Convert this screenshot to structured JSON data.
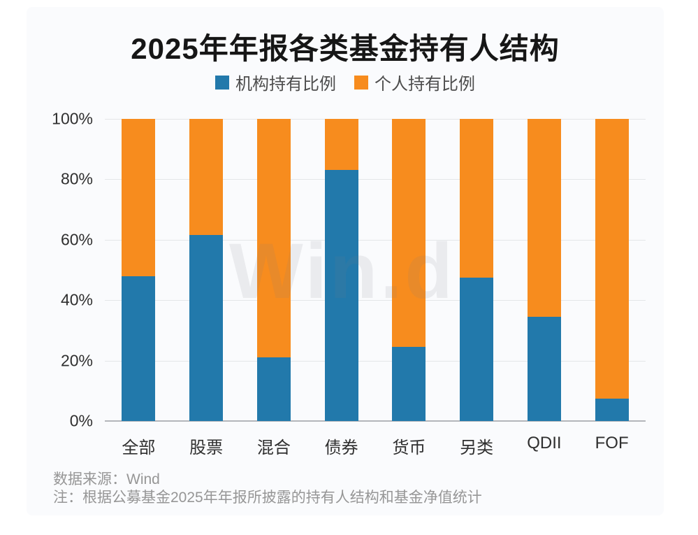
{
  "title": "2025年年报各类基金持有人结构",
  "legend": {
    "institutional": {
      "label": "机构持有比例",
      "color": "#2279ab"
    },
    "individual": {
      "label": "个人持有比例",
      "color": "#f78c1e"
    }
  },
  "watermark": "Win.d",
  "footer": {
    "source": "数据来源：Wind",
    "note": "注：根据公募基金2025年年报所披露的持有人结构和基金净值统计"
  },
  "chart_data": {
    "type": "bar",
    "stacked": true,
    "title": "2025年年报各类基金持有人结构",
    "categories": [
      "全部",
      "股票",
      "混合",
      "债券",
      "货币",
      "另类",
      "QDII",
      "FOF"
    ],
    "series": [
      {
        "name": "机构持有比例",
        "color": "#2279ab",
        "values": [
          48,
          61.5,
          21,
          83,
          24.5,
          47.5,
          34.5,
          7.5
        ]
      },
      {
        "name": "个人持有比例",
        "color": "#f78c1e",
        "values": [
          52,
          38.5,
          79,
          17,
          75.5,
          52.5,
          65.5,
          92.5
        ]
      }
    ],
    "xlabel": "",
    "ylabel": "",
    "ylim": [
      0,
      100
    ],
    "y_ticks": [
      "0%",
      "20%",
      "40%",
      "60%",
      "80%",
      "100%"
    ],
    "grid": true,
    "legend_position": "top",
    "annotations": [
      "Win.d watermark"
    ]
  }
}
